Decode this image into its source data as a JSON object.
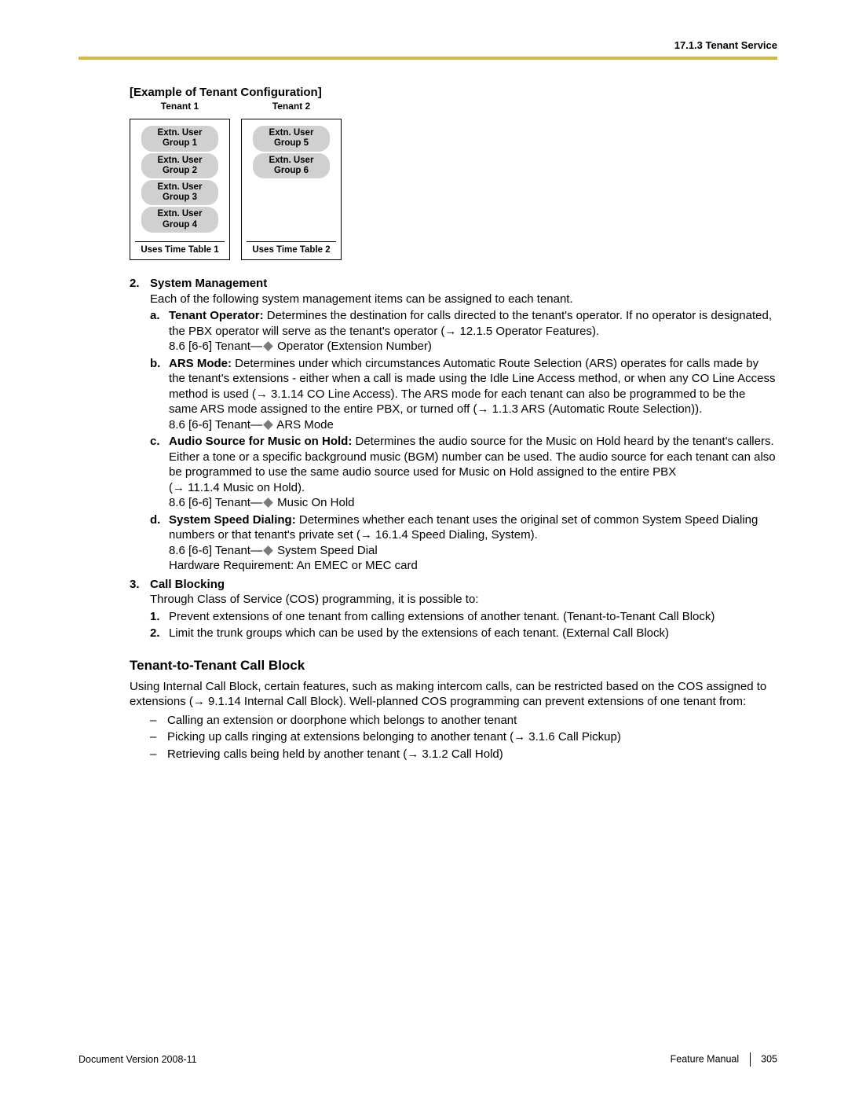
{
  "header": {
    "section": "17.1.3 Tenant Service"
  },
  "example": {
    "title": "[Example of Tenant Configuration]",
    "tenants": [
      {
        "label": "Tenant 1",
        "groups": [
          "Extn. User Group 1",
          "Extn. User Group 2",
          "Extn. User Group 3",
          "Extn. User Group 4"
        ],
        "footer": "Uses Time Table 1"
      },
      {
        "label": "Tenant 2",
        "groups": [
          "Extn. User Group 5",
          "Extn. User Group 6"
        ],
        "footer": "Uses Time Table 2"
      }
    ]
  },
  "item2": {
    "marker": "2.",
    "heading": "System Management",
    "intro": "Each of the following system management items can be assigned to each tenant.",
    "a": {
      "marker": "a.",
      "label": "Tenant Operator:",
      "text1": " Determines the destination for calls directed to the tenant's operator. If no operator is designated, the PBX operator will serve as the tenant's operator (",
      "ref": "→ 12.1.5  Operator Features",
      "text2": ").",
      "line2a": "8.6  [6-6] Tenant—",
      "line2b": " Operator (Extension Number)"
    },
    "b": {
      "marker": "b.",
      "label": "ARS Mode:",
      "text1": " Determines under which circumstances Automatic Route Selection (ARS) operates for calls made by the tenant's extensions - either when a call is made using the Idle Line Access method, or when any CO Line Access method is used (",
      "ref1": "→ 3.1.14  CO Line Access",
      "text2": "). The ARS mode for each tenant can also be programmed to be the same ARS mode assigned to the entire PBX, or turned off (",
      "ref2": "→ 1.1.3  ARS (Automatic Route Selection)",
      "text3": ").",
      "line2a": "8.6  [6-6] Tenant—",
      "line2b": " ARS Mode"
    },
    "c": {
      "marker": "c.",
      "label": "Audio Source for Music on Hold:",
      "text1": " Determines the audio source for the Music on Hold heard by the tenant's callers. Either a tone or a specific background music (BGM) number can be used. The audio source for each tenant can also be programmed to use the same audio source used for Music on Hold assigned to the entire PBX (",
      "ref": "→ 11.1.4  Music on Hold",
      "text2": ").",
      "line2a": "8.6  [6-6] Tenant—",
      "line2b": " Music On Hold"
    },
    "d": {
      "marker": "d.",
      "label": "System Speed Dialing:",
      "text1": " Determines whether each tenant uses the original set of common System Speed Dialing numbers or that tenant's private set (",
      "ref": "→ 16.1.4  Speed Dialing, System",
      "text2": ").",
      "line2a": "8.6  [6-6] Tenant—",
      "line2b": " System Speed Dial",
      "line3": "Hardware Requirement: An EMEC or MEC card"
    }
  },
  "item3": {
    "marker": "3.",
    "heading": "Call Blocking",
    "intro": "Through Class of Service (COS) programming, it is possible to:",
    "sub1": {
      "marker": "1.",
      "text": "Prevent extensions of one tenant from calling extensions of another tenant. (Tenant-to-Tenant Call Block)"
    },
    "sub2": {
      "marker": "2.",
      "text": "Limit the trunk groups which can be used by the extensions of each tenant. (External Call Block)"
    }
  },
  "t2t": {
    "heading": "Tenant-to-Tenant Call Block",
    "para1a": "Using Internal Call Block, certain features, such as making intercom calls, can be restricted based on the COS assigned to extensions (",
    "ref": "→ 9.1.14  Internal Call Block",
    "para1b": "). Well-planned COS programming can prevent extensions of one tenant from:",
    "d1": "Calling an extension or doorphone which belongs to another tenant",
    "d2a": "Picking up calls ringing at extensions belonging to another tenant (",
    "d2ref": "→ 3.1.6  Call Pickup",
    "d2b": ")",
    "d3a": "Retrieving calls being held by another tenant (",
    "d3ref": "→ 3.1.2  Call Hold",
    "d3b": ")"
  },
  "footer": {
    "version": "Document Version  2008-11",
    "manual": "Feature Manual",
    "page": "305"
  }
}
